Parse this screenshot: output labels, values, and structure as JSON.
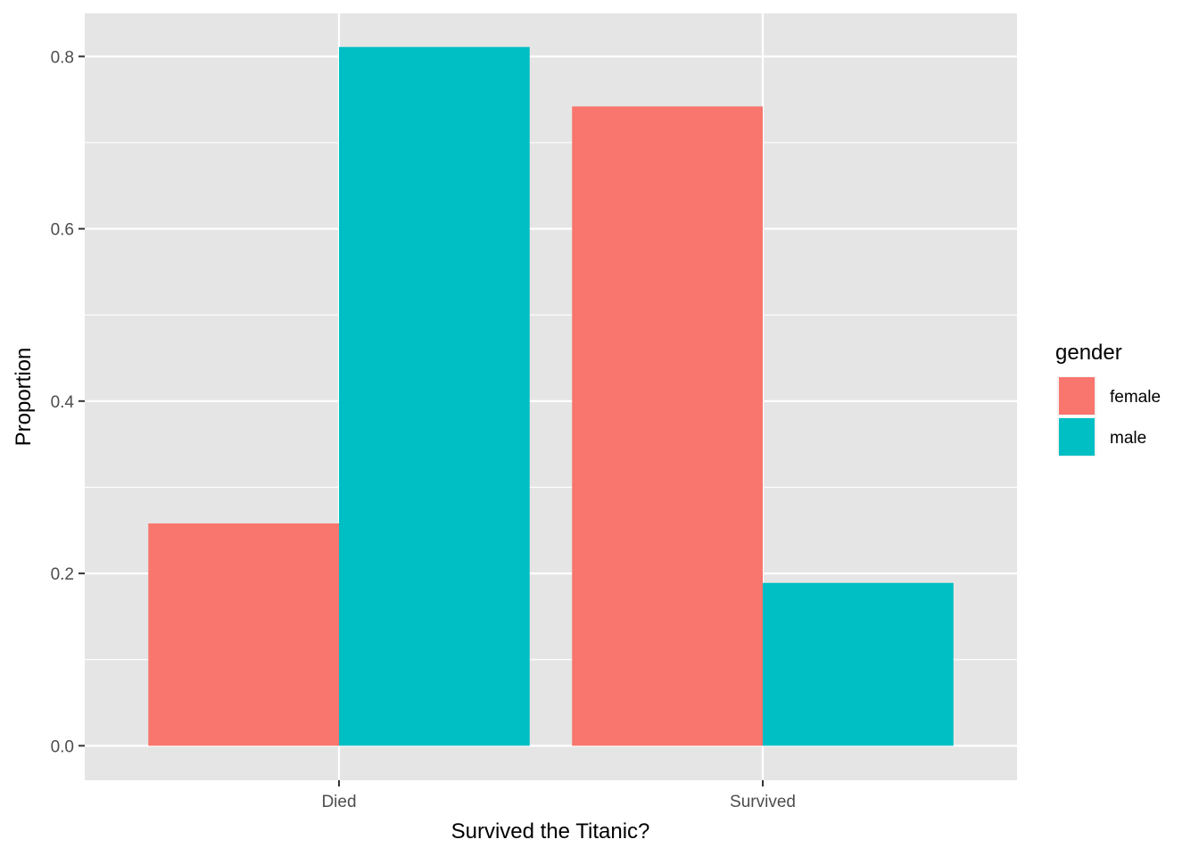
{
  "chart_data": {
    "type": "bar",
    "xlabel": "Survived the Titanic?",
    "ylabel": "Proportion",
    "categories": [
      "Died",
      "Survived"
    ],
    "series": [
      {
        "name": "female",
        "values": [
          0.258,
          0.742
        ],
        "color": "#F8766D"
      },
      {
        "name": "male",
        "values": [
          0.811,
          0.189
        ],
        "color": "#00BFC4"
      }
    ],
    "ylim": [
      -0.04,
      0.85
    ],
    "yticks": [
      0.0,
      0.2,
      0.4,
      0.6,
      0.8
    ],
    "ytick_labels": [
      "0.0",
      "0.2",
      "0.4",
      "0.6",
      "0.8"
    ],
    "grid": true,
    "panel_color": "#E5E5E5",
    "legend": {
      "title": "gender",
      "placement": "right"
    }
  }
}
